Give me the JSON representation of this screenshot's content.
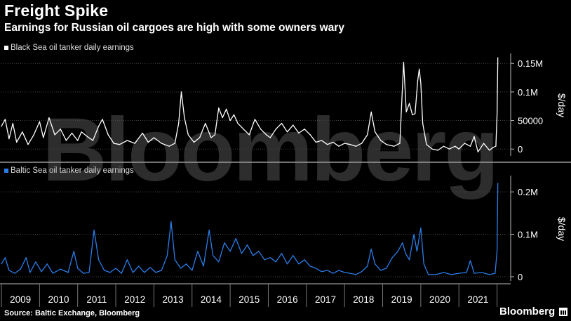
{
  "title": "Freight Spike",
  "subtitle": "Earnings for Russian oil cargoes are high with some owners wary",
  "source": "Source: Baltic Exchange, Bloomberg",
  "brand": "Bloomberg",
  "watermark": "Bloomberg",
  "colors": {
    "black_sea": "#ffffff",
    "baltic_sea": "#2b7de9",
    "grid": "#444444"
  },
  "chart_data": [
    {
      "type": "line",
      "title": "",
      "legend": "Black Sea oil tanker daily earnings",
      "ylabel": "$/day",
      "ylim": [
        -12000,
        165000
      ],
      "yticks": [
        0,
        50000,
        100000,
        150000
      ],
      "ytick_labels": [
        "0",
        "50000",
        "0.1M",
        "0.15M"
      ],
      "xlim": [
        2009.0,
        2022.1
      ],
      "series": [
        {
          "name": "Black Sea oil tanker daily earnings",
          "points": [
            [
              2009.0,
              40000
            ],
            [
              2009.1,
              52000
            ],
            [
              2009.2,
              18000
            ],
            [
              2009.3,
              45000
            ],
            [
              2009.4,
              12000
            ],
            [
              2009.55,
              30000
            ],
            [
              2009.7,
              8000
            ],
            [
              2009.85,
              25000
            ],
            [
              2010.0,
              48000
            ],
            [
              2010.1,
              20000
            ],
            [
              2010.25,
              55000
            ],
            [
              2010.4,
              25000
            ],
            [
              2010.55,
              35000
            ],
            [
              2010.7,
              15000
            ],
            [
              2010.85,
              28000
            ],
            [
              2011.0,
              15000
            ],
            [
              2011.1,
              30000
            ],
            [
              2011.25,
              22000
            ],
            [
              2011.4,
              15000
            ],
            [
              2011.55,
              40000
            ],
            [
              2011.65,
              52000
            ],
            [
              2011.8,
              25000
            ],
            [
              2011.95,
              10000
            ],
            [
              2012.1,
              8000
            ],
            [
              2012.3,
              15000
            ],
            [
              2012.5,
              10000
            ],
            [
              2012.7,
              28000
            ],
            [
              2012.85,
              12000
            ],
            [
              2013.0,
              20000
            ],
            [
              2013.2,
              10000
            ],
            [
              2013.4,
              5000
            ],
            [
              2013.55,
              10000
            ],
            [
              2013.65,
              45000
            ],
            [
              2013.72,
              100000
            ],
            [
              2013.8,
              55000
            ],
            [
              2013.9,
              25000
            ],
            [
              2014.05,
              12000
            ],
            [
              2014.2,
              20000
            ],
            [
              2014.35,
              45000
            ],
            [
              2014.5,
              20000
            ],
            [
              2014.6,
              25000
            ],
            [
              2014.7,
              72000
            ],
            [
              2014.8,
              55000
            ],
            [
              2014.9,
              70000
            ],
            [
              2015.0,
              50000
            ],
            [
              2015.1,
              60000
            ],
            [
              2015.2,
              45000
            ],
            [
              2015.35,
              35000
            ],
            [
              2015.5,
              25000
            ],
            [
              2015.65,
              52000
            ],
            [
              2015.8,
              35000
            ],
            [
              2015.95,
              25000
            ],
            [
              2016.05,
              20000
            ],
            [
              2016.2,
              35000
            ],
            [
              2016.35,
              45000
            ],
            [
              2016.5,
              30000
            ],
            [
              2016.65,
              42000
            ],
            [
              2016.8,
              28000
            ],
            [
              2016.95,
              35000
            ],
            [
              2017.1,
              25000
            ],
            [
              2017.25,
              12000
            ],
            [
              2017.4,
              15000
            ],
            [
              2017.55,
              8000
            ],
            [
              2017.7,
              12000
            ],
            [
              2017.85,
              5000
            ],
            [
              2018.0,
              10000
            ],
            [
              2018.15,
              8000
            ],
            [
              2018.3,
              5000
            ],
            [
              2018.45,
              10000
            ],
            [
              2018.6,
              25000
            ],
            [
              2018.7,
              65000
            ],
            [
              2018.8,
              30000
            ],
            [
              2018.95,
              15000
            ],
            [
              2019.1,
              8000
            ],
            [
              2019.3,
              5000
            ],
            [
              2019.45,
              10000
            ],
            [
              2019.55,
              152000
            ],
            [
              2019.62,
              65000
            ],
            [
              2019.7,
              80000
            ],
            [
              2019.78,
              60000
            ],
            [
              2019.85,
              62000
            ],
            [
              2019.92,
              120000
            ],
            [
              2019.96,
              140000
            ],
            [
              2020.0,
              115000
            ],
            [
              2020.05,
              45000
            ],
            [
              2020.15,
              8000
            ],
            [
              2020.3,
              0
            ],
            [
              2020.45,
              -2000
            ],
            [
              2020.6,
              5000
            ],
            [
              2020.75,
              0
            ],
            [
              2020.9,
              5000
            ],
            [
              2021.0,
              0
            ],
            [
              2021.15,
              10000
            ],
            [
              2021.3,
              5000
            ],
            [
              2021.4,
              22000
            ],
            [
              2021.5,
              -5000
            ],
            [
              2021.65,
              10000
            ],
            [
              2021.8,
              -2000
            ],
            [
              2021.9,
              3000
            ],
            [
              2021.97,
              5000
            ],
            [
              2022.0,
              60000
            ],
            [
              2022.02,
              160000
            ]
          ]
        }
      ]
    },
    {
      "type": "line",
      "title": "",
      "legend": "Baltic Sea oil tanker daily earnings",
      "ylabel": "$/day",
      "ylim": [
        -10000,
        235000
      ],
      "yticks": [
        0,
        100000,
        200000
      ],
      "ytick_labels": [
        "0",
        "0.1M",
        "0.2M"
      ],
      "xlim": [
        2009.0,
        2022.1
      ],
      "series": [
        {
          "name": "Baltic Sea oil tanker daily earnings",
          "points": [
            [
              2009.0,
              30000
            ],
            [
              2009.1,
              45000
            ],
            [
              2009.2,
              15000
            ],
            [
              2009.35,
              8000
            ],
            [
              2009.5,
              18000
            ],
            [
              2009.65,
              45000
            ],
            [
              2009.75,
              10000
            ],
            [
              2009.9,
              35000
            ],
            [
              2010.05,
              12000
            ],
            [
              2010.2,
              30000
            ],
            [
              2010.35,
              8000
            ],
            [
              2010.55,
              18000
            ],
            [
              2010.75,
              10000
            ],
            [
              2010.9,
              60000
            ],
            [
              2011.0,
              20000
            ],
            [
              2011.15,
              8000
            ],
            [
              2011.3,
              10000
            ],
            [
              2011.43,
              110000
            ],
            [
              2011.55,
              40000
            ],
            [
              2011.7,
              15000
            ],
            [
              2011.85,
              10000
            ],
            [
              2012.0,
              20000
            ],
            [
              2012.15,
              8000
            ],
            [
              2012.3,
              40000
            ],
            [
              2012.45,
              10000
            ],
            [
              2012.6,
              25000
            ],
            [
              2012.75,
              10000
            ],
            [
              2012.9,
              22000
            ],
            [
              2013.05,
              10000
            ],
            [
              2013.2,
              15000
            ],
            [
              2013.35,
              50000
            ],
            [
              2013.45,
              130000
            ],
            [
              2013.55,
              40000
            ],
            [
              2013.7,
              20000
            ],
            [
              2013.85,
              30000
            ],
            [
              2014.0,
              15000
            ],
            [
              2014.15,
              60000
            ],
            [
              2014.3,
              25000
            ],
            [
              2014.45,
              110000
            ],
            [
              2014.55,
              50000
            ],
            [
              2014.7,
              35000
            ],
            [
              2014.85,
              80000
            ],
            [
              2015.0,
              60000
            ],
            [
              2015.15,
              90000
            ],
            [
              2015.3,
              55000
            ],
            [
              2015.45,
              75000
            ],
            [
              2015.6,
              50000
            ],
            [
              2015.75,
              60000
            ],
            [
              2015.9,
              40000
            ],
            [
              2016.05,
              45000
            ],
            [
              2016.2,
              35000
            ],
            [
              2016.35,
              55000
            ],
            [
              2016.5,
              30000
            ],
            [
              2016.65,
              50000
            ],
            [
              2016.8,
              30000
            ],
            [
              2016.95,
              40000
            ],
            [
              2017.1,
              25000
            ],
            [
              2017.25,
              20000
            ],
            [
              2017.4,
              12000
            ],
            [
              2017.55,
              15000
            ],
            [
              2017.7,
              8000
            ],
            [
              2017.85,
              15000
            ],
            [
              2018.0,
              10000
            ],
            [
              2018.15,
              8000
            ],
            [
              2018.3,
              5000
            ],
            [
              2018.45,
              12000
            ],
            [
              2018.6,
              25000
            ],
            [
              2018.7,
              65000
            ],
            [
              2018.8,
              30000
            ],
            [
              2018.95,
              15000
            ],
            [
              2019.1,
              20000
            ],
            [
              2019.25,
              45000
            ],
            [
              2019.4,
              60000
            ],
            [
              2019.52,
              80000
            ],
            [
              2019.6,
              55000
            ],
            [
              2019.7,
              40000
            ],
            [
              2019.82,
              100000
            ],
            [
              2019.9,
              60000
            ],
            [
              2020.0,
              115000
            ],
            [
              2020.08,
              30000
            ],
            [
              2020.2,
              5000
            ],
            [
              2020.4,
              5000
            ],
            [
              2020.6,
              10000
            ],
            [
              2020.8,
              5000
            ],
            [
              2021.0,
              8000
            ],
            [
              2021.2,
              10000
            ],
            [
              2021.3,
              38000
            ],
            [
              2021.4,
              8000
            ],
            [
              2021.6,
              10000
            ],
            [
              2021.8,
              5000
            ],
            [
              2021.95,
              8000
            ],
            [
              2022.0,
              60000
            ],
            [
              2022.02,
              220000
            ]
          ]
        }
      ]
    }
  ],
  "x_axis": {
    "ticks": [
      "2009",
      "2010",
      "2011",
      "2012",
      "2013",
      "2014",
      "2015",
      "2016",
      "2017",
      "2018",
      "2019",
      "2020",
      "2021"
    ]
  }
}
